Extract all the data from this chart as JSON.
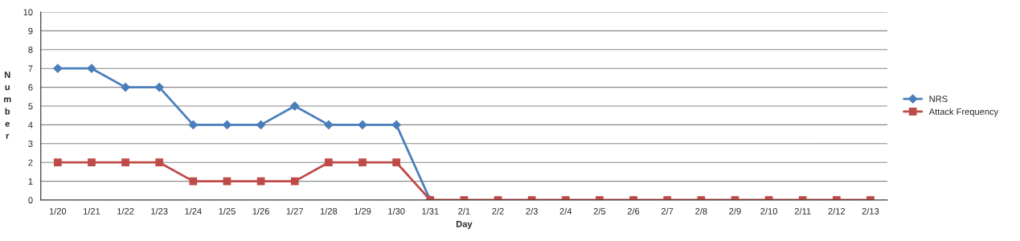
{
  "chart_data": {
    "type": "line",
    "xlabel": "Day",
    "ylabel": "Number",
    "categories": [
      "1/20",
      "1/21",
      "1/22",
      "1/23",
      "1/24",
      "1/25",
      "1/26",
      "1/27",
      "1/28",
      "1/29",
      "1/30",
      "1/31",
      "2/1",
      "2/2",
      "2/3",
      "2/4",
      "2/5",
      "2/6",
      "2/7",
      "2/8",
      "2/9",
      "2/10",
      "2/11",
      "2/12",
      "2/13"
    ],
    "series": [
      {
        "name": "NRS",
        "color": "#4a7ebb",
        "marker": "diamond",
        "values": [
          7,
          7,
          6,
          6,
          4,
          4,
          4,
          5,
          4,
          4,
          4,
          0,
          null,
          null,
          null,
          null,
          null,
          null,
          null,
          null,
          null,
          null,
          null,
          null,
          null
        ]
      },
      {
        "name": "Attack Frequency",
        "color": "#be4b48",
        "marker": "square",
        "values": [
          2,
          2,
          2,
          2,
          1,
          1,
          1,
          1,
          2,
          2,
          2,
          0,
          0,
          0,
          0,
          0,
          0,
          0,
          0,
          0,
          0,
          0,
          0,
          0,
          0
        ]
      }
    ],
    "ylim": [
      0,
      10
    ],
    "yticks": [
      0,
      1,
      2,
      3,
      4,
      5,
      6,
      7,
      8,
      9,
      10
    ],
    "grid": "y",
    "legend": "right"
  }
}
